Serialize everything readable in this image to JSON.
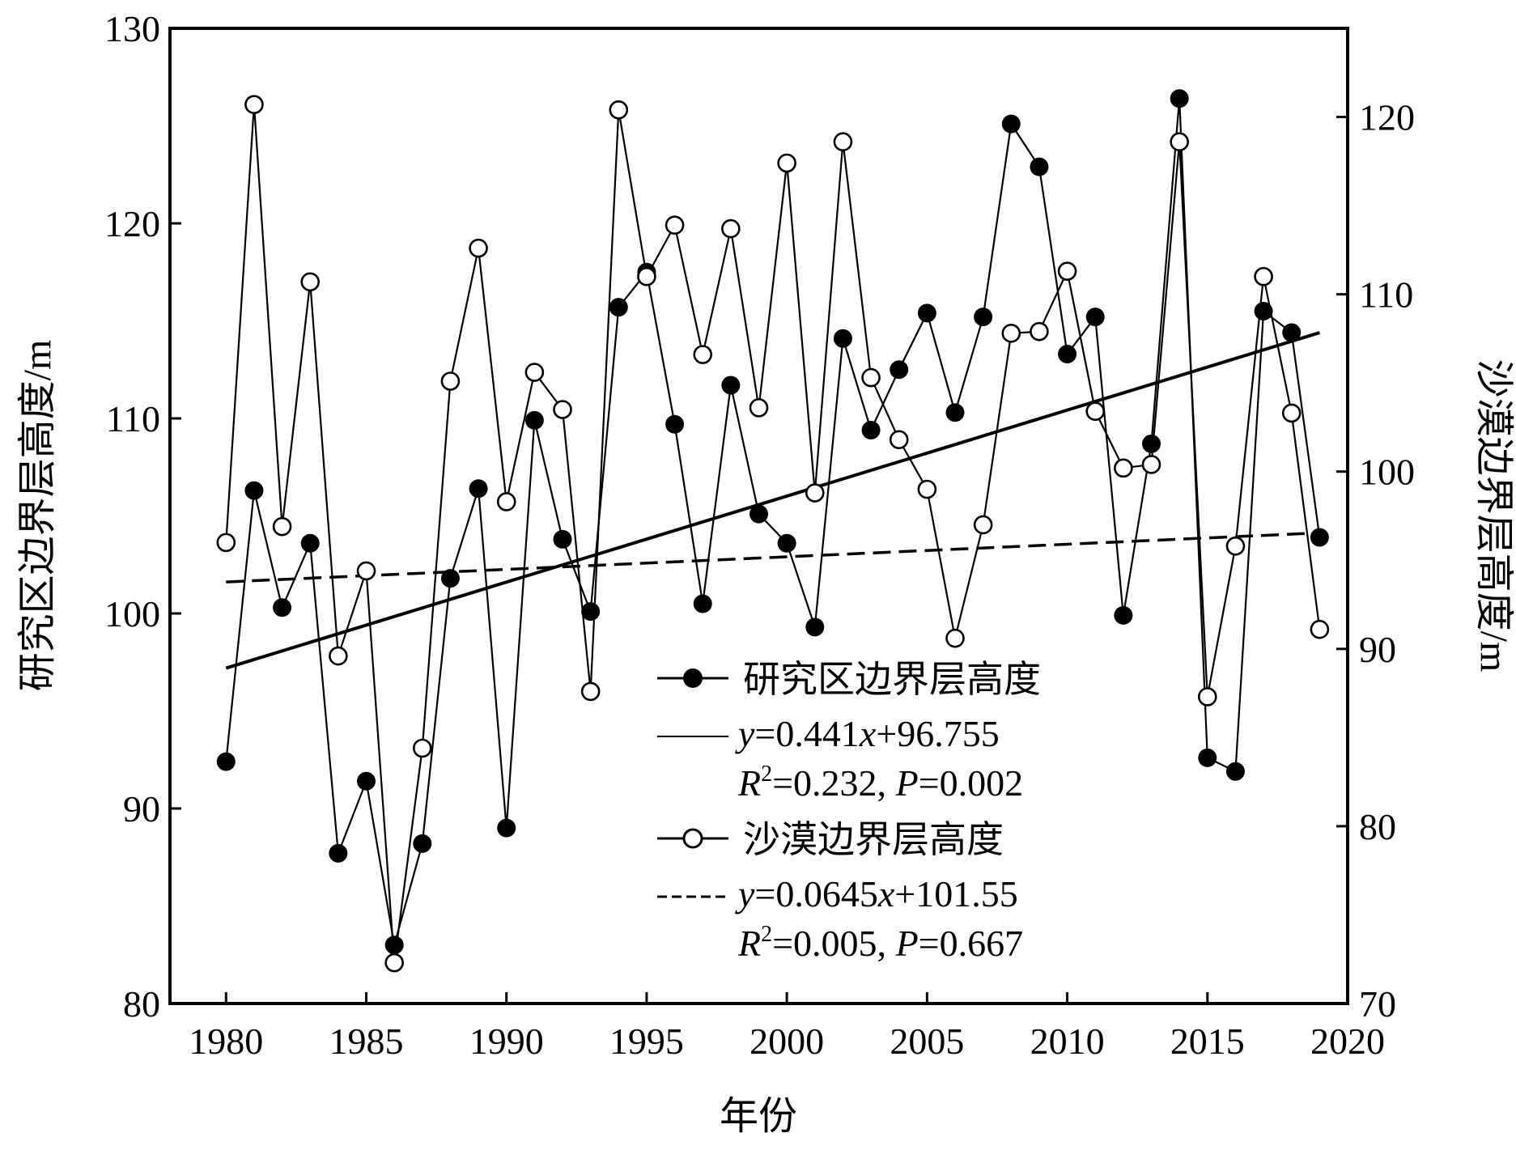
{
  "chart_data": {
    "type": "line",
    "xlabel": "年份",
    "ylabel_left": "研究区边界层高度/m",
    "ylabel_right": "沙漠边界层高度/m",
    "xlim": [
      1978,
      2020
    ],
    "ylim_left": [
      80,
      130
    ],
    "ylim_right": [
      70,
      125
    ],
    "x_ticks": [
      1980,
      1985,
      1990,
      1995,
      2000,
      2005,
      2010,
      2015,
      2020
    ],
    "y_ticks_left": [
      80,
      90,
      100,
      110,
      120,
      130
    ],
    "y_ticks_right": [
      70,
      80,
      90,
      100,
      110,
      120
    ],
    "grid": false,
    "legend_position": "lower-center",
    "x": [
      1980,
      1981,
      1982,
      1983,
      1984,
      1985,
      1986,
      1987,
      1988,
      1989,
      1990,
      1991,
      1992,
      1993,
      1994,
      1995,
      1996,
      1997,
      1998,
      1999,
      2000,
      2001,
      2002,
      2003,
      2004,
      2005,
      2006,
      2007,
      2008,
      2009,
      2010,
      2011,
      2012,
      2013,
      2014,
      2015,
      2016,
      2017,
      2018,
      2019
    ],
    "series": [
      {
        "name": "研究区边界层高度",
        "axis": "left",
        "marker": "filled-circle",
        "values": [
          92.4,
          106.3,
          100.3,
          103.6,
          87.7,
          91.4,
          83.0,
          88.2,
          101.8,
          106.4,
          89.0,
          109.9,
          103.8,
          100.1,
          115.7,
          117.5,
          109.7,
          100.5,
          111.7,
          105.1,
          103.6,
          99.3,
          114.1,
          109.4,
          112.5,
          115.4,
          110.3,
          115.2,
          125.1,
          122.9,
          113.3,
          115.2,
          99.9,
          108.7,
          126.4,
          92.6,
          91.9,
          115.5,
          114.4,
          103.9
        ]
      },
      {
        "name": "沙漠边界层高度",
        "axis": "right",
        "marker": "open-circle",
        "values": [
          96.0,
          120.7,
          96.9,
          110.7,
          89.6,
          94.4,
          72.3,
          84.4,
          105.1,
          112.6,
          98.3,
          105.6,
          103.5,
          87.6,
          120.4,
          111.0,
          113.9,
          106.6,
          113.7,
          103.6,
          117.4,
          98.8,
          118.6,
          105.3,
          101.8,
          99.0,
          90.6,
          97.0,
          107.8,
          107.9,
          111.3,
          103.4,
          100.2,
          100.4,
          118.6,
          87.3,
          95.8,
          111.0,
          103.3,
          91.1
        ]
      }
    ],
    "trend_lines": [
      {
        "label": "y=0.441x+96.755",
        "stats": "R²=0.232, P=0.002",
        "axis": "left",
        "style": "solid",
        "slope": 0.441,
        "intercept": 96.755
      },
      {
        "label": "y=0.0645x+101.55",
        "stats": "R²=0.005, P=0.667",
        "axis": "left",
        "style": "dashed",
        "slope": 0.0645,
        "intercept": 101.55
      }
    ],
    "legend": {
      "series1": "研究区边界层高度",
      "eq1_y": "y",
      "eq1_rest": "=0.441",
      "eq1_x": "x",
      "eq1_tail": "+96.755",
      "stat1_r": "R",
      "stat1_sup": "2",
      "stat1_rest": "=0.232, ",
      "stat1_p": "P",
      "stat1_tail": "=0.002",
      "series2": "沙漠边界层高度",
      "eq2_y": "y",
      "eq2_rest": "=0.0645",
      "eq2_x": "x",
      "eq2_tail": "+101.55",
      "stat2_r": "R",
      "stat2_sup": "2",
      "stat2_rest": "=0.005, ",
      "stat2_p": "P",
      "stat2_tail": "=0.667"
    }
  }
}
